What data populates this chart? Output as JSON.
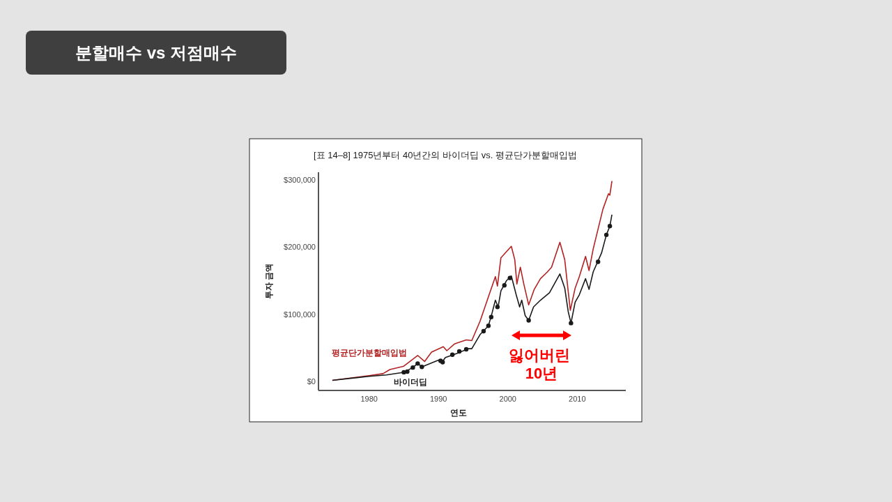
{
  "chart_data": {
    "type": "line",
    "title": "분할매수 vs 저점매수",
    "subtitle": "[표 14–8] 1975년부터 40년간의 바이더딥 vs. 평균단가분할매입법",
    "xlabel": "연도",
    "ylabel": "투자 금액",
    "xlim": [
      1972.7,
      2017
    ],
    "ylim": [
      -13000,
      311000
    ],
    "xticks": [
      1980,
      1990,
      2000,
      2010
    ],
    "yticks": [
      {
        "value": 0,
        "label": "$0"
      },
      {
        "value": 100000,
        "label": "$100,000"
      },
      {
        "value": 200000,
        "label": "$200,000"
      },
      {
        "value": 300000,
        "label": "$300,000"
      }
    ],
    "grid": false,
    "series": [
      {
        "name": "평균단가분할매입법",
        "color": "#b22222",
        "x": [
          1974.7,
          1980,
          1982,
          1983,
          1985,
          1987,
          1988,
          1989.0,
          1990.7,
          1991.2,
          1992.3,
          1994,
          1994.8,
          1996,
          1997.3,
          1998.2,
          1998.5,
          1999,
          2000.5,
          2001,
          2001.3,
          2001.8,
          2002.3,
          2003,
          2003.8,
          2004.7,
          2005.7,
          2006.3,
          2007.5,
          2008.2,
          2009,
          2009.7,
          2010.3,
          2011.2,
          2011.7,
          2012.3,
          2013.7,
          2014.5,
          2014.7,
          2015
        ],
        "values": [
          2000,
          9000,
          12000,
          18000,
          23000,
          39000,
          30000,
          44000,
          52000,
          46000,
          56000,
          62000,
          61000,
          90000,
          129000,
          156000,
          142000,
          184000,
          201000,
          181000,
          145000,
          170000,
          145000,
          114000,
          137000,
          153000,
          163000,
          170000,
          207000,
          181000,
          106000,
          139000,
          156000,
          186000,
          165000,
          197000,
          256000,
          279000,
          277000,
          298000
        ]
      },
      {
        "name": "바이더딥",
        "color": "#1a1a1a",
        "x": [
          1974.7,
          1980,
          1982.5,
          1985,
          1986.3,
          1987,
          1987.6,
          1990,
          1990.5,
          1991,
          1992.7,
          1994.3,
          1994.8,
          1996,
          1997.2,
          1997.7,
          1998.2,
          1998.6,
          1999,
          1999.8,
          2000.5,
          2001.2,
          2001.7,
          2002,
          2002.5,
          2003,
          2003.7,
          2004.7,
          2006,
          2007.5,
          2008.2,
          2008.7,
          2009.1,
          2009.7,
          2010.3,
          2011.2,
          2011.7,
          2012.3,
          2013.5,
          2014.2,
          2014.7,
          2015
        ],
        "values": [
          2000,
          8000,
          10000,
          14000,
          21000,
          27000,
          22000,
          32000,
          29000,
          36000,
          42000,
          49000,
          49000,
          70000,
          83000,
          101000,
          121000,
          111000,
          135000,
          150000,
          157000,
          129000,
          111000,
          121000,
          98000,
          91000,
          111000,
          121000,
          132000,
          160000,
          139000,
          104000,
          87000,
          118000,
          129000,
          153000,
          137000,
          163000,
          191000,
          218000,
          231000,
          248000
        ]
      },
      {
        "type": "scatter",
        "color": "#1a1a1a",
        "marker": "circle",
        "x": [
          1985,
          1985.5,
          1986.3,
          1987,
          1987.6,
          1990.3,
          1990.6,
          1992,
          1993,
          1994,
          1996.5,
          1997.2,
          1997.6,
          1998.5,
          1999.5,
          2000.3,
          2003,
          2009.1,
          2013,
          2014.2,
          2014.7
        ],
        "values": [
          14000,
          15000,
          21000,
          27000,
          22000,
          31000,
          29000,
          40000,
          45000,
          48000,
          75000,
          83000,
          96000,
          111000,
          143000,
          154000,
          91000,
          87000,
          178000,
          218000,
          231000
        ]
      }
    ],
    "annotations": [
      "잃어버린 10년"
    ]
  }
}
